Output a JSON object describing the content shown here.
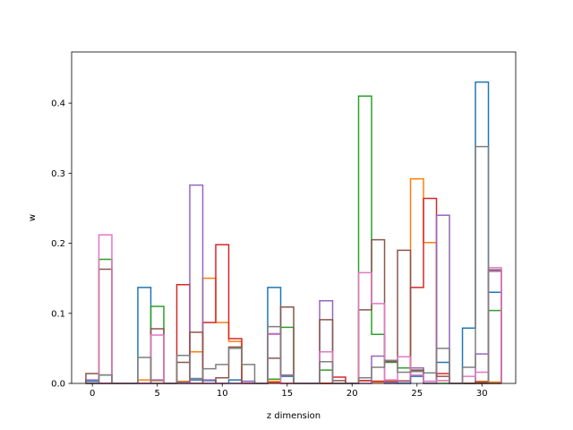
{
  "chart_data": {
    "type": "bar",
    "style": "step-histogram (unfilled outlines), one series per color",
    "title": "",
    "xlabel": "z dimension",
    "ylabel": "w",
    "xlim": [
      -1.6,
      32.6
    ],
    "ylim": [
      0,
      0.473
    ],
    "xticks": [
      0,
      5,
      10,
      15,
      20,
      25,
      30
    ],
    "yticks": [
      0.0,
      0.1,
      0.2,
      0.3,
      0.4
    ],
    "ytick_labels": [
      "0.0",
      "0.1",
      "0.2",
      "0.3",
      "0.4"
    ],
    "x": [
      0,
      1,
      2,
      3,
      4,
      5,
      6,
      7,
      8,
      9,
      10,
      11,
      12,
      13,
      14,
      15,
      16,
      17,
      18,
      19,
      20,
      21,
      22,
      23,
      24,
      25,
      26,
      27,
      28,
      29,
      30,
      31
    ],
    "grid": false,
    "legend": "none",
    "series": [
      {
        "color": "#1f77b4",
        "values": [
          0.003,
          0.012,
          0,
          0,
          0.137,
          0.004,
          0,
          0.002,
          0.005,
          0.004,
          0,
          0.005,
          0.003,
          0,
          0.137,
          0.01,
          0,
          0,
          0,
          0,
          0,
          0.004,
          0.003,
          0.002,
          0,
          0.01,
          0.003,
          0.03,
          0,
          0.079,
          0.43,
          0.13
        ]
      },
      {
        "color": "#ff7f0e",
        "values": [
          0,
          0,
          0,
          0,
          0.005,
          0.004,
          0,
          0.003,
          0.045,
          0.15,
          0.087,
          0.06,
          0,
          0,
          0.003,
          0,
          0,
          0,
          0,
          0,
          0,
          0.004,
          0.002,
          0.003,
          0.004,
          0.292,
          0.201,
          0.004,
          0,
          0,
          0.003,
          0.002
        ]
      },
      {
        "color": "#2ca02c",
        "values": [
          0,
          0.177,
          0,
          0,
          0,
          0.11,
          0,
          0,
          0,
          0,
          0,
          0,
          0,
          0,
          0.006,
          0.08,
          0,
          0,
          0.019,
          0,
          0,
          0.41,
          0.07,
          0.03,
          0.022,
          0.018,
          0,
          0,
          0,
          0,
          0,
          0.104
        ]
      },
      {
        "color": "#d62728",
        "values": [
          0,
          0,
          0,
          0,
          0,
          0,
          0,
          0.141,
          0,
          0.087,
          0.198,
          0.064,
          0,
          0,
          0.001,
          0,
          0,
          0,
          0,
          0.009,
          0,
          0.004,
          0.003,
          0.004,
          0.003,
          0.137,
          0.264,
          0.014,
          0,
          0,
          0,
          0
        ]
      },
      {
        "color": "#9467bd",
        "values": [
          0.005,
          0,
          0,
          0,
          0,
          0.005,
          0,
          0,
          0.283,
          0.005,
          0,
          0,
          0.003,
          0,
          0.071,
          0.011,
          0,
          0,
          0.118,
          0,
          0,
          0,
          0.039,
          0,
          0.003,
          0.022,
          0,
          0.24,
          0,
          0,
          0.042,
          0.16
        ]
      },
      {
        "color": "#8c564b",
        "values": [
          0.014,
          0.163,
          0,
          0,
          0,
          0.078,
          0,
          0.03,
          0.073,
          0,
          0.008,
          0.052,
          0,
          0,
          0.036,
          0.109,
          0,
          0,
          0.091,
          0.004,
          0,
          0.105,
          0.205,
          0.031,
          0.19,
          0.019,
          0.015,
          0.01,
          0,
          0,
          0.002,
          0.162
        ]
      },
      {
        "color": "#e377c2",
        "values": [
          0,
          0.212,
          0,
          0,
          0,
          0.069,
          0,
          0,
          0,
          0,
          0,
          0,
          0,
          0,
          0.07,
          0,
          0,
          0,
          0.045,
          0,
          0,
          0.158,
          0.114,
          0.005,
          0.038,
          0.012,
          0.003,
          0.004,
          0,
          0.01,
          0.016,
          0.165
        ]
      },
      {
        "color": "#7f7f7f",
        "values": [
          0,
          0.012,
          0,
          0,
          0.037,
          0,
          0,
          0.04,
          0.007,
          0.021,
          0.027,
          0.05,
          0.027,
          0,
          0.081,
          0.012,
          0,
          0,
          0.031,
          0,
          0,
          0.008,
          0.023,
          0.033,
          0.016,
          0.017,
          0.015,
          0.05,
          0,
          0.023,
          0.338,
          0
        ]
      }
    ]
  }
}
